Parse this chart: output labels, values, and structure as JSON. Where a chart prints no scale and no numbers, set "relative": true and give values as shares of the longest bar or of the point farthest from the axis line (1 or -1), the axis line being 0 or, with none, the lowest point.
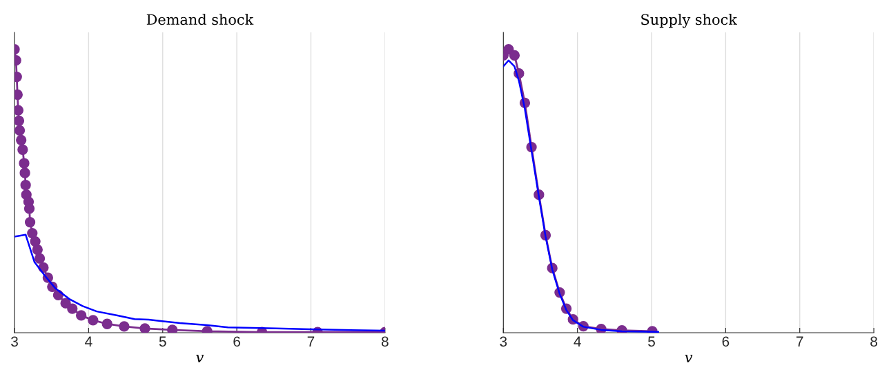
{
  "chart_data": [
    {
      "type": "line",
      "title": "Demand shock",
      "xlabel": "v",
      "relative": true,
      "xlim": [
        3,
        8
      ],
      "xticks": [
        3,
        4,
        5,
        6,
        7,
        8
      ],
      "grid": "x",
      "tick_labels": "x",
      "legend": false,
      "series": [
        {
          "color": "#7b2d8e",
          "marker": "circle",
          "x": [
            3.0,
            3.02,
            3.03,
            3.04,
            3.05,
            3.06,
            3.07,
            3.09,
            3.11,
            3.13,
            3.14,
            3.15,
            3.16,
            3.19,
            3.2,
            3.21,
            3.24,
            3.28,
            3.31,
            3.34,
            3.39,
            3.45,
            3.51,
            3.59,
            3.69,
            3.78,
            3.9,
            4.06,
            4.25,
            4.48,
            4.76,
            5.13,
            5.6,
            6.34,
            7.09,
            8.0
          ],
          "values": [
            1,
            0.961,
            0.903,
            0.84,
            0.785,
            0.748,
            0.714,
            0.68,
            0.646,
            0.598,
            0.564,
            0.521,
            0.487,
            0.462,
            0.438,
            0.39,
            0.351,
            0.322,
            0.293,
            0.262,
            0.23,
            0.194,
            0.162,
            0.133,
            0.104,
            0.085,
            0.061,
            0.044,
            0.031,
            0.022,
            0.015,
            0.01,
            0.005,
            0.002,
            0.002,
            0.002
          ]
        },
        {
          "color": "#0000ff",
          "marker": "none",
          "x": [
            3.0,
            3.15,
            3.27,
            3.41,
            3.55,
            3.74,
            3.92,
            4.11,
            4.39,
            4.62,
            4.81,
            4.99,
            5.23,
            5.6,
            5.88,
            6.53,
            6.99,
            8.0
          ],
          "values": [
            0.339,
            0.346,
            0.249,
            0.201,
            0.157,
            0.119,
            0.094,
            0.075,
            0.061,
            0.048,
            0.046,
            0.041,
            0.034,
            0.027,
            0.019,
            0.015,
            0.012,
            0.007
          ]
        }
      ]
    },
    {
      "type": "line",
      "title": "Supply shock",
      "xlabel": "v",
      "relative": true,
      "xlim": [
        3,
        8
      ],
      "xticks": [
        3,
        4,
        5,
        6,
        7,
        8
      ],
      "grid": "x",
      "tick_labels": "x",
      "legend": false,
      "series": [
        {
          "color": "#7b2d8e",
          "marker": "circle",
          "x": [
            3.0,
            3.07,
            3.15,
            3.21,
            3.29,
            3.38,
            3.48,
            3.57,
            3.66,
            3.76,
            3.85,
            3.94,
            4.08,
            4.32,
            4.6,
            5.01
          ],
          "values": [
            0.979,
            1,
            0.979,
            0.915,
            0.811,
            0.655,
            0.487,
            0.344,
            0.228,
            0.142,
            0.085,
            0.047,
            0.023,
            0.013,
            0.008,
            0.005
          ]
        },
        {
          "color": "#0000ff",
          "marker": "none",
          "x": [
            3.0,
            3.07,
            3.15,
            3.21,
            3.29,
            3.38,
            3.48,
            3.57,
            3.66,
            3.76,
            3.85,
            3.94,
            4.08,
            4.32,
            4.6,
            5.09
          ],
          "values": [
            0.94,
            0.961,
            0.94,
            0.889,
            0.79,
            0.642,
            0.479,
            0.339,
            0.223,
            0.137,
            0.08,
            0.044,
            0.021,
            0.01,
            0.005,
            0.003
          ]
        }
      ]
    }
  ]
}
